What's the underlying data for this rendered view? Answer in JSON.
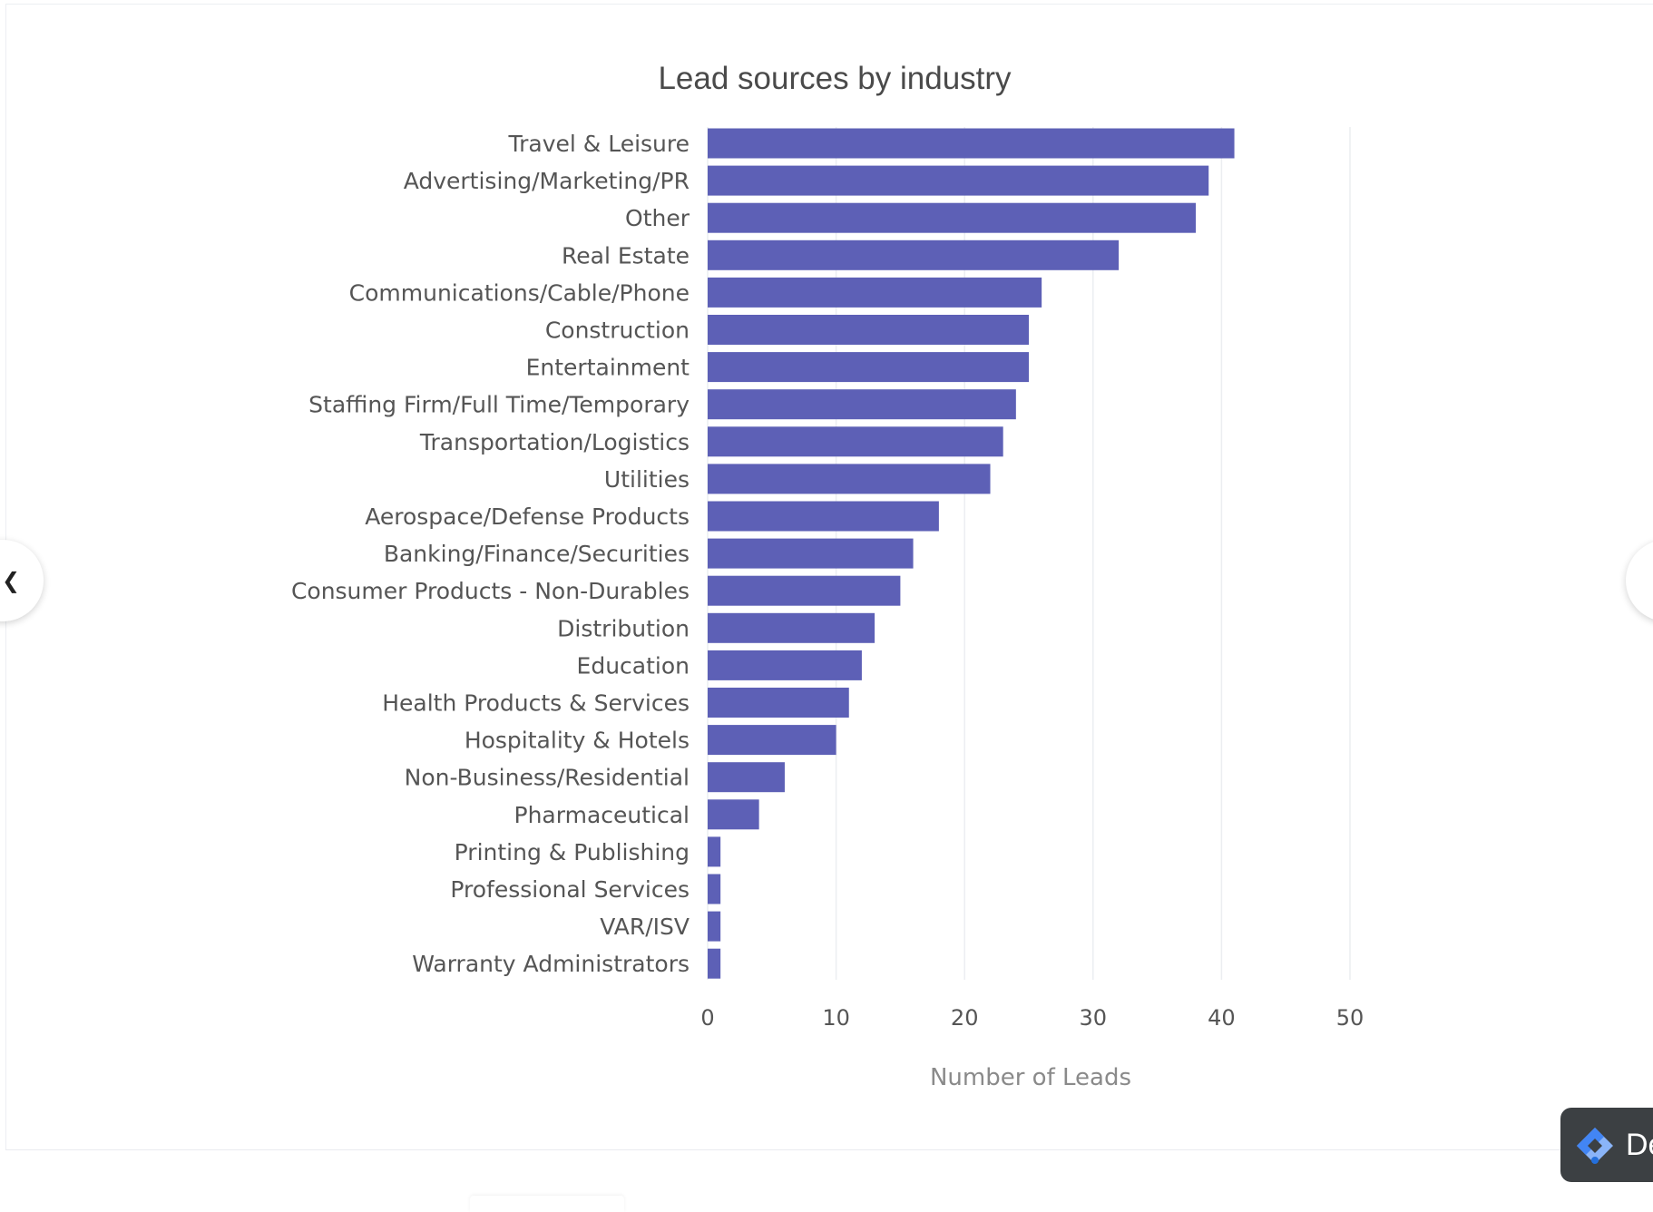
{
  "page": {
    "debug_label": "De"
  },
  "colors": {
    "bar": "#5d60b6",
    "grid": "#eceef1",
    "text": "#555555",
    "title": "#4a4a4a",
    "axis_title": "#8a8a8a"
  },
  "chart_data": {
    "type": "bar",
    "orientation": "horizontal",
    "title": "Lead sources by industry",
    "xlabel": "Number of Leads",
    "ylabel": "",
    "xlim": [
      0,
      50
    ],
    "xticks": [
      0,
      10,
      20,
      30,
      40,
      50
    ],
    "grid": true,
    "categories": [
      "Travel & Leisure",
      "Advertising/Marketing/PR",
      "Other",
      "Real Estate",
      "Communications/Cable/Phone",
      "Construction",
      "Entertainment",
      "Staffing Firm/Full Time/Temporary",
      "Transportation/Logistics",
      "Utilities",
      "Aerospace/Defense Products",
      "Banking/Finance/Securities",
      "Consumer Products - Non-Durables",
      "Distribution",
      "Education",
      "Health Products & Services",
      "Hospitality & Hotels",
      "Non-Business/Residential",
      "Pharmaceutical",
      "Printing & Publishing",
      "Professional Services",
      "VAR/ISV",
      "Warranty Administrators"
    ],
    "values": [
      41,
      39,
      38,
      32,
      26,
      25,
      25,
      24,
      23,
      22,
      18,
      16,
      15,
      13,
      12,
      11,
      10,
      6,
      4,
      1,
      1,
      1,
      1
    ]
  }
}
